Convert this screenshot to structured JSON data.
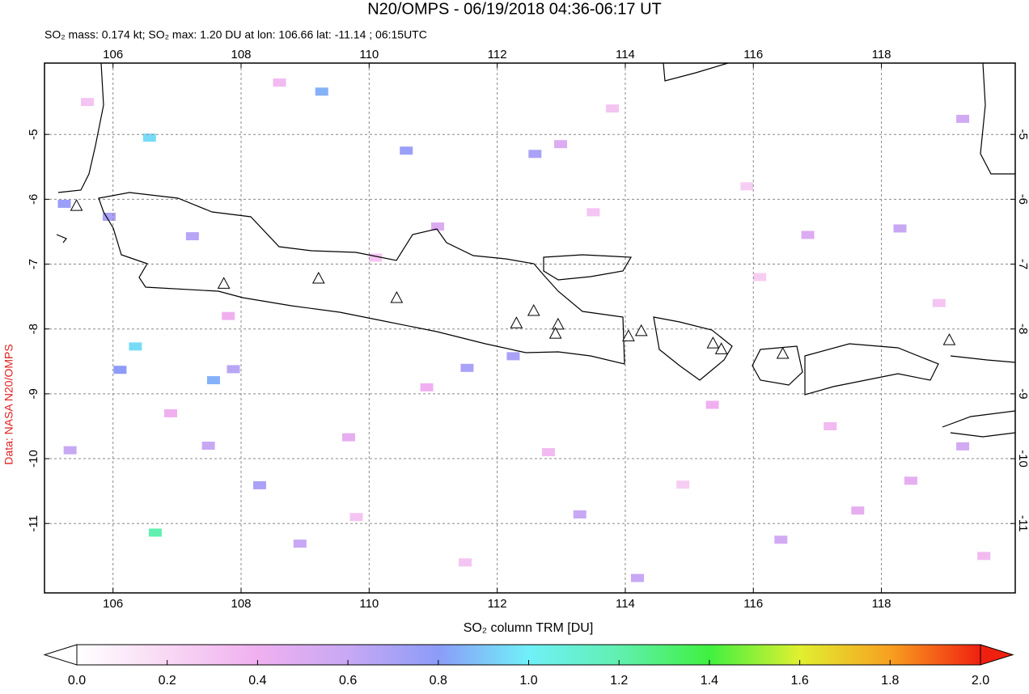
{
  "chart_data": {
    "type": "map",
    "title": "N20/OMPS - 06/19/2018 04:36-06:17 UT",
    "subtitle": "SO₂ mass: 0.174 kt; SO₂ max: 1.20 DU at lon: 106.66 lat: -11.14 ; 06:15UTC",
    "credit": "Data: NASA N20/OMPS",
    "xlim": [
      104.93,
      120.09
    ],
    "ylim": [
      -12.07,
      -3.9
    ],
    "xticks": [
      106,
      108,
      110,
      112,
      114,
      116,
      118
    ],
    "yticks": [
      -5,
      -6,
      -7,
      -8,
      -9,
      -10,
      -11
    ],
    "grid": true,
    "pixels": {
      "lon": [
        106.66,
        106.57,
        106.35,
        109.26,
        107.57,
        106.11,
        108.29,
        110.58,
        112.59,
        112.25,
        111.53,
        107.88,
        107.24,
        118.29,
        119.27,
        108.92,
        113.29,
        114.19,
        116.43,
        119.27,
        116.85,
        107.49,
        105.33,
        105.94,
        105.24,
        112.99,
        118.46,
        117.63,
        115.36,
        109.68,
        111.07,
        108.6,
        110.1,
        113.8,
        115.9,
        117.2,
        106.9,
        109.8,
        112.8,
        114.9,
        118.9,
        107.8,
        111.5,
        116.1,
        119.6,
        105.6,
        110.9,
        113.5
      ],
      "lat": [
        -11.14,
        -5.05,
        -8.27,
        -4.34,
        -8.79,
        -8.63,
        -10.41,
        -5.25,
        -5.3,
        -8.42,
        -8.6,
        -8.62,
        -6.57,
        -6.45,
        -4.76,
        -11.31,
        -10.86,
        -11.84,
        -11.25,
        -9.81,
        -6.55,
        -9.8,
        -9.87,
        -6.27,
        -6.07,
        -5.15,
        -10.34,
        -10.8,
        -9.17,
        -9.67,
        -6.42,
        -4.2,
        -6.9,
        -4.6,
        -5.8,
        -9.5,
        -9.3,
        -10.9,
        -9.9,
        -10.4,
        -7.6,
        -7.8,
        -11.6,
        -7.2,
        -11.5,
        -4.5,
        -8.9,
        -6.2
      ],
      "values": [
        1.2,
        0.95,
        0.95,
        0.85,
        0.85,
        0.8,
        0.7,
        0.75,
        0.7,
        0.7,
        0.7,
        0.65,
        0.65,
        0.6,
        0.55,
        0.6,
        0.6,
        0.6,
        0.55,
        0.55,
        0.5,
        0.6,
        0.6,
        0.7,
        0.75,
        0.5,
        0.45,
        0.45,
        0.4,
        0.45,
        0.5,
        0.35,
        0.3,
        0.3,
        0.25,
        0.35,
        0.4,
        0.3,
        0.35,
        0.25,
        0.3,
        0.4,
        0.3,
        0.25,
        0.35,
        0.3,
        0.4,
        0.3
      ]
    },
    "volcanoes": {
      "lon": [
        105.43,
        107.73,
        109.21,
        110.43,
        112.3,
        112.57,
        112.95,
        112.91,
        114.05,
        114.25,
        115.37,
        115.5,
        116.46,
        119.06
      ],
      "lat": [
        -6.11,
        -7.31,
        -7.23,
        -7.53,
        -7.92,
        -7.73,
        -7.94,
        -8.08,
        -8.12,
        -8.04,
        -8.23,
        -8.32,
        -8.39,
        -8.18
      ]
    },
    "colorbar": {
      "label": "SO₂ column TRM [DU]",
      "lim": [
        0,
        2
      ],
      "ticks": [
        {
          "value": 0,
          "label": "0.0"
        },
        0.2,
        0.4,
        0.6,
        0.8,
        {
          "value": 1,
          "label": "1.0"
        },
        1.2,
        1.4,
        1.6,
        1.8,
        {
          "value": 2,
          "label": "2.0"
        }
      ],
      "colors": [
        "#ffffff",
        "#f8d8f4",
        "#f0b0f0",
        "#c8a8f4",
        "#8c9cf8",
        "#70f0f8",
        "#60f0b0",
        "#40f040",
        "#e0f030",
        "#f8a020",
        "#f02010"
      ]
    }
  }
}
